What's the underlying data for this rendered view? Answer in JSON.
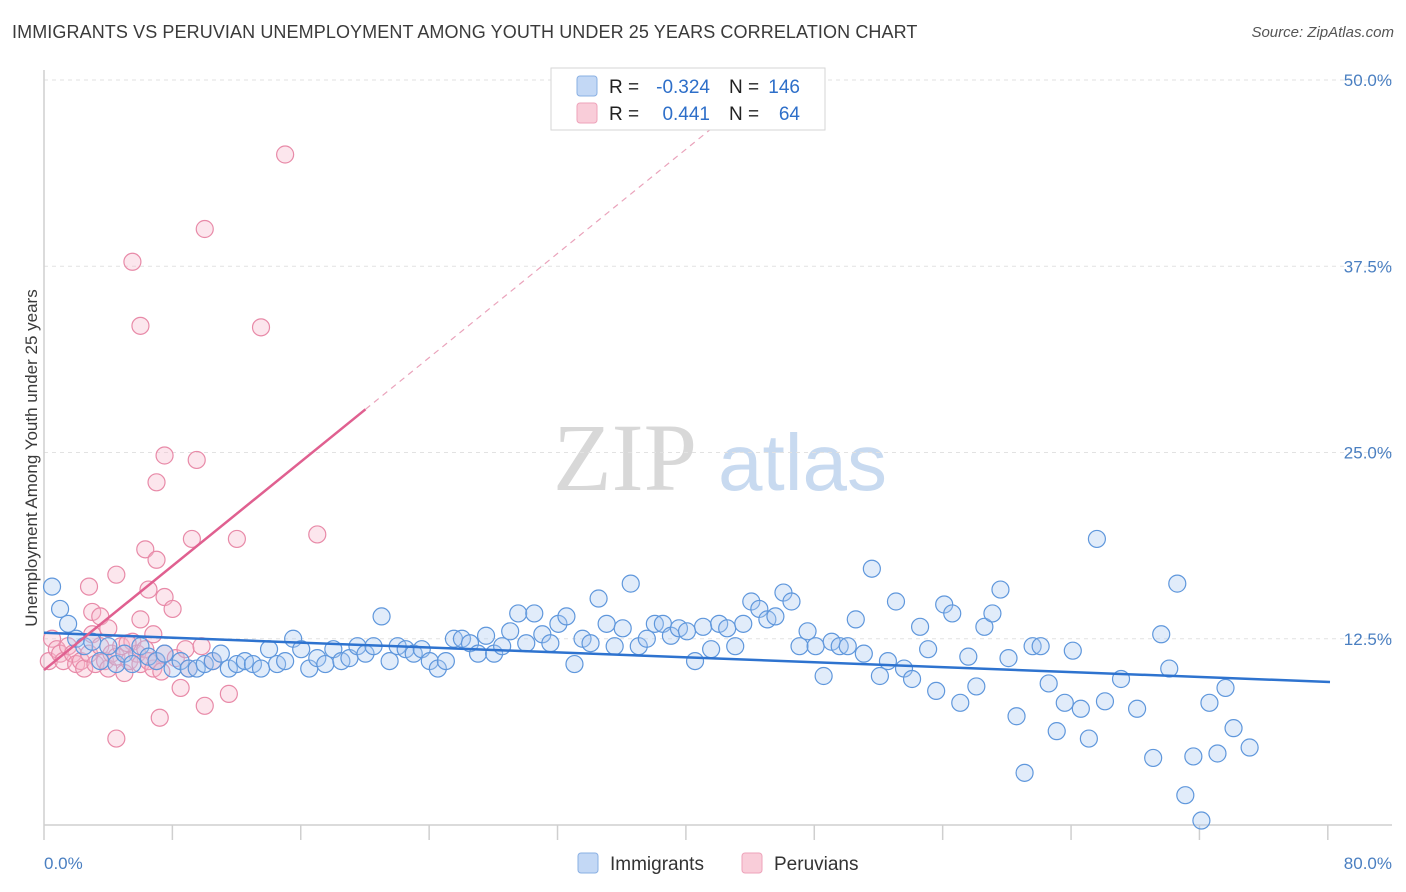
{
  "header": {
    "title": "IMMIGRANTS VS PERUVIAN UNEMPLOYMENT AMONG YOUTH UNDER 25 YEARS CORRELATION CHART",
    "source": "Source: ZipAtlas.com"
  },
  "watermark": {
    "zip": "ZIP",
    "atlas": "atlas"
  },
  "legend_top": [
    {
      "r_label": "R = ",
      "r_value": "-0.324",
      "n_label": "N = ",
      "n_value": "146",
      "color": "#a8c8f0"
    },
    {
      "r_label": "R = ",
      "r_value": "0.441",
      "n_label": "N = ",
      "n_value": "64",
      "color": "#f5b5c8"
    }
  ],
  "legend_bottom": [
    {
      "label": "Immigrants",
      "color": "#a8c8f0"
    },
    {
      "label": "Peruvians",
      "color": "#f5b5c8"
    }
  ],
  "chart_data": {
    "type": "scatter",
    "xlabel": "",
    "ylabel": "Unemployment Among Youth under 25 years",
    "xlim": [
      0,
      80
    ],
    "ylim": [
      0,
      50
    ],
    "x_tick_labels": [
      "0.0%",
      "80.0%"
    ],
    "y_tick_labels": [
      "12.5%",
      "25.0%",
      "37.5%",
      "50.0%"
    ],
    "y_ticks": [
      12.5,
      25.0,
      37.5,
      50.0
    ],
    "grid": true,
    "series": [
      {
        "name": "Immigrants",
        "color": "#6fa3e0",
        "trend": {
          "x": [
            0,
            80
          ],
          "y": [
            12.9,
            9.6
          ],
          "style": "solid",
          "color": "#2e73cf"
        },
        "points": [
          [
            0.5,
            16.0
          ],
          [
            1.0,
            14.5
          ],
          [
            1.5,
            13.5
          ],
          [
            2.0,
            12.5
          ],
          [
            2.5,
            12.0
          ],
          [
            3.0,
            12.3
          ],
          [
            3.5,
            11.0
          ],
          [
            4.0,
            12.0
          ],
          [
            4.5,
            10.8
          ],
          [
            5.0,
            11.5
          ],
          [
            5.5,
            10.8
          ],
          [
            6.0,
            12.0
          ],
          [
            6.5,
            11.3
          ],
          [
            7.0,
            11.0
          ],
          [
            7.5,
            11.5
          ],
          [
            8.0,
            10.5
          ],
          [
            8.5,
            11.0
          ],
          [
            9.0,
            10.5
          ],
          [
            9.5,
            10.5
          ],
          [
            10.0,
            10.8
          ],
          [
            10.5,
            11.0
          ],
          [
            11.0,
            11.5
          ],
          [
            11.5,
            10.5
          ],
          [
            12.0,
            10.8
          ],
          [
            12.5,
            11.0
          ],
          [
            13.0,
            10.8
          ],
          [
            13.5,
            10.5
          ],
          [
            14.0,
            11.8
          ],
          [
            14.5,
            10.8
          ],
          [
            15.0,
            11.0
          ],
          [
            15.5,
            12.5
          ],
          [
            16.0,
            11.8
          ],
          [
            16.5,
            10.5
          ],
          [
            17.0,
            11.2
          ],
          [
            17.5,
            10.8
          ],
          [
            18.0,
            11.8
          ],
          [
            18.5,
            11.0
          ],
          [
            19.0,
            11.2
          ],
          [
            19.5,
            12.0
          ],
          [
            20.0,
            11.5
          ],
          [
            20.5,
            12.0
          ],
          [
            21.0,
            14.0
          ],
          [
            21.5,
            11.0
          ],
          [
            22.0,
            12.0
          ],
          [
            22.5,
            11.8
          ],
          [
            23.0,
            11.5
          ],
          [
            23.5,
            11.8
          ],
          [
            24.0,
            11.0
          ],
          [
            24.5,
            10.5
          ],
          [
            25.0,
            11.0
          ],
          [
            25.5,
            12.5
          ],
          [
            26.0,
            12.5
          ],
          [
            26.5,
            12.2
          ],
          [
            27.0,
            11.5
          ],
          [
            27.5,
            12.7
          ],
          [
            28.0,
            11.5
          ],
          [
            28.5,
            12.0
          ],
          [
            29.0,
            13.0
          ],
          [
            29.5,
            14.2
          ],
          [
            30.0,
            12.2
          ],
          [
            30.5,
            14.2
          ],
          [
            31.0,
            12.8
          ],
          [
            31.5,
            12.2
          ],
          [
            32.0,
            13.5
          ],
          [
            32.5,
            14.0
          ],
          [
            33.0,
            10.8
          ],
          [
            33.5,
            12.5
          ],
          [
            34.0,
            12.2
          ],
          [
            34.5,
            15.2
          ],
          [
            35.0,
            13.5
          ],
          [
            35.5,
            12.0
          ],
          [
            36.0,
            13.2
          ],
          [
            36.5,
            16.2
          ],
          [
            37.0,
            12.0
          ],
          [
            37.5,
            12.5
          ],
          [
            38.0,
            13.5
          ],
          [
            38.5,
            13.5
          ],
          [
            39.0,
            12.7
          ],
          [
            39.5,
            13.2
          ],
          [
            40.0,
            13.0
          ],
          [
            40.5,
            11.0
          ],
          [
            41.0,
            13.3
          ],
          [
            41.5,
            11.8
          ],
          [
            42.0,
            13.5
          ],
          [
            42.5,
            13.2
          ],
          [
            43.0,
            12.0
          ],
          [
            43.5,
            13.5
          ],
          [
            44.0,
            15.0
          ],
          [
            44.5,
            14.5
          ],
          [
            45.0,
            13.8
          ],
          [
            45.5,
            14.0
          ],
          [
            46.0,
            15.6
          ],
          [
            46.5,
            15.0
          ],
          [
            47.0,
            12.0
          ],
          [
            47.5,
            13.0
          ],
          [
            48.0,
            12.0
          ],
          [
            48.5,
            10.0
          ],
          [
            49.0,
            12.3
          ],
          [
            49.5,
            12.0
          ],
          [
            50.0,
            12.0
          ],
          [
            50.5,
            13.8
          ],
          [
            51.0,
            11.5
          ],
          [
            51.5,
            17.2
          ],
          [
            52.0,
            10.0
          ],
          [
            52.5,
            11.0
          ],
          [
            53.0,
            15.0
          ],
          [
            53.5,
            10.5
          ],
          [
            54.0,
            9.8
          ],
          [
            54.5,
            13.3
          ],
          [
            55.0,
            11.8
          ],
          [
            55.5,
            9.0
          ],
          [
            56.0,
            14.8
          ],
          [
            56.5,
            14.2
          ],
          [
            57.0,
            8.2
          ],
          [
            57.5,
            11.3
          ],
          [
            58.0,
            9.3
          ],
          [
            58.5,
            13.3
          ],
          [
            59.0,
            14.2
          ],
          [
            59.5,
            15.8
          ],
          [
            60.0,
            11.2
          ],
          [
            60.5,
            7.3
          ],
          [
            61.0,
            3.5
          ],
          [
            61.5,
            12.0
          ],
          [
            62.0,
            12.0
          ],
          [
            62.5,
            9.5
          ],
          [
            63.0,
            6.3
          ],
          [
            63.5,
            8.2
          ],
          [
            64.0,
            11.7
          ],
          [
            64.5,
            7.8
          ],
          [
            65.0,
            5.8
          ],
          [
            65.5,
            19.2
          ],
          [
            66.0,
            8.3
          ],
          [
            67.0,
            9.8
          ],
          [
            68.0,
            7.8
          ],
          [
            69.0,
            4.5
          ],
          [
            69.5,
            12.8
          ],
          [
            70.0,
            10.5
          ],
          [
            70.5,
            16.2
          ],
          [
            71.0,
            2.0
          ],
          [
            71.5,
            4.6
          ],
          [
            72.0,
            0.3
          ],
          [
            72.5,
            8.2
          ],
          [
            73.0,
            4.8
          ],
          [
            73.5,
            9.2
          ],
          [
            74.0,
            6.5
          ],
          [
            75.0,
            5.2
          ]
        ]
      },
      {
        "name": "Peruvians",
        "color": "#f0a0b8",
        "trend": {
          "x": [
            0,
            20
          ],
          "y": [
            10.4,
            27.9
          ],
          "style": "solid",
          "color": "#e06090",
          "ext": {
            "x": [
              20,
              42.5
            ],
            "y": [
              27.9,
              47.6
            ]
          }
        },
        "points": [
          [
            0.3,
            11.0
          ],
          [
            0.5,
            12.5
          ],
          [
            0.8,
            11.8
          ],
          [
            1.0,
            11.5
          ],
          [
            1.2,
            11.0
          ],
          [
            1.5,
            12.0
          ],
          [
            1.8,
            11.5
          ],
          [
            2.0,
            10.8
          ],
          [
            2.3,
            11.0
          ],
          [
            2.5,
            10.5
          ],
          [
            2.8,
            11.5
          ],
          [
            3.0,
            12.8
          ],
          [
            3.2,
            10.8
          ],
          [
            3.5,
            12.0
          ],
          [
            3.8,
            11.0
          ],
          [
            4.0,
            10.5
          ],
          [
            4.2,
            11.5
          ],
          [
            4.5,
            11.3
          ],
          [
            4.8,
            12.0
          ],
          [
            5.0,
            10.2
          ],
          [
            5.3,
            11.0
          ],
          [
            5.5,
            12.3
          ],
          [
            5.8,
            11.5
          ],
          [
            6.0,
            10.8
          ],
          [
            6.3,
            11.8
          ],
          [
            6.5,
            11.0
          ],
          [
            6.8,
            10.5
          ],
          [
            7.0,
            11.0
          ],
          [
            7.3,
            10.3
          ],
          [
            7.5,
            11.5
          ],
          [
            3.0,
            14.3
          ],
          [
            2.8,
            16.0
          ],
          [
            3.5,
            14.0
          ],
          [
            4.5,
            5.8
          ],
          [
            4.5,
            16.8
          ],
          [
            6.0,
            13.8
          ],
          [
            6.3,
            18.5
          ],
          [
            6.5,
            15.8
          ],
          [
            7.0,
            17.8
          ],
          [
            7.5,
            15.3
          ],
          [
            8.0,
            14.5
          ],
          [
            7.2,
            7.2
          ],
          [
            8.2,
            11.2
          ],
          [
            8.5,
            9.2
          ],
          [
            9.0,
            10.5
          ],
          [
            9.2,
            19.2
          ],
          [
            5.5,
            37.8
          ],
          [
            6.0,
            33.5
          ],
          [
            7.0,
            23.0
          ],
          [
            7.5,
            24.8
          ],
          [
            9.5,
            24.5
          ],
          [
            10.0,
            8.0
          ],
          [
            10.0,
            40.0
          ],
          [
            11.5,
            8.8
          ],
          [
            12.0,
            19.2
          ],
          [
            13.5,
            33.4
          ],
          [
            15.0,
            45.0
          ],
          [
            17.0,
            19.5
          ],
          [
            4.0,
            13.2
          ],
          [
            5.2,
            12.2
          ],
          [
            6.8,
            12.8
          ],
          [
            8.8,
            11.8
          ],
          [
            9.8,
            12.0
          ],
          [
            10.5,
            11.0
          ]
        ]
      }
    ]
  }
}
